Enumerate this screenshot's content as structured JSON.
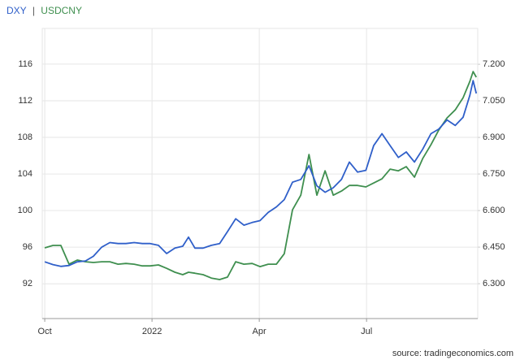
{
  "chart_data": {
    "type": "line",
    "title_separator": "|",
    "source": "source: tradingeconomics.com",
    "x": [
      0,
      0.23,
      0.45,
      0.68,
      0.91,
      1.14,
      1.36,
      1.59,
      1.82,
      2.05,
      2.27,
      2.5,
      2.73,
      2.95,
      3.18,
      3.41,
      3.64,
      3.86,
      4.02,
      4.2,
      4.43,
      4.66,
      4.89,
      5.11,
      5.34,
      5.57,
      5.8,
      6.02,
      6.25,
      6.48,
      6.7,
      6.93,
      7.16,
      7.39,
      7.61,
      7.84,
      8.07,
      8.3,
      8.52,
      8.75,
      8.98,
      9.2,
      9.43,
      9.66,
      9.89,
      10.11,
      10.34,
      10.57,
      10.8,
      11.02,
      11.25,
      11.48,
      11.7,
      11.89,
      11.98,
      12.07
    ],
    "xlim": [
      -0.07,
      12.11
    ],
    "xticks": [
      {
        "value": 0,
        "label": "Oct"
      },
      {
        "value": 3,
        "label": "2022"
      },
      {
        "value": 6,
        "label": "Apr"
      },
      {
        "value": 9,
        "label": "Jul"
      }
    ],
    "ylim": [
      88.2,
      119.9
    ],
    "yticks": [
      92,
      96,
      100,
      104,
      108,
      112,
      116
    ],
    "y2lim": [
      6.157,
      7.347
    ],
    "y2ticks": [
      {
        "value": 6.3,
        "label": "6.300"
      },
      {
        "value": 6.45,
        "label": "6.450"
      },
      {
        "value": 6.6,
        "label": "6.600"
      },
      {
        "value": 6.75,
        "label": "6.750"
      },
      {
        "value": 6.9,
        "label": "6.900"
      },
      {
        "value": 7.05,
        "label": "7.050"
      },
      {
        "value": 7.2,
        "label": "7.200"
      }
    ],
    "grid": true,
    "series": [
      {
        "name": "DXY",
        "color": "#2f5fc9",
        "values": [
          94.4,
          94.1,
          93.9,
          94.0,
          94.4,
          94.5,
          95.0,
          96.0,
          96.5,
          96.4,
          96.4,
          96.5,
          96.4,
          96.4,
          96.2,
          95.3,
          95.9,
          96.1,
          97.1,
          95.9,
          95.9,
          96.2,
          96.4,
          97.7,
          99.1,
          98.4,
          98.7,
          98.9,
          99.8,
          100.4,
          101.2,
          103.1,
          103.4,
          104.9,
          102.7,
          102.0,
          102.5,
          103.4,
          105.3,
          104.2,
          104.4,
          107.1,
          108.4,
          107.1,
          105.8,
          106.4,
          105.3,
          106.7,
          108.4,
          108.9,
          109.9,
          109.3,
          110.2,
          112.6,
          114.2,
          112.8
        ]
      },
      {
        "name": "USDCNY",
        "color": "#3f8f4f",
        "axis": "y2",
        "values": [
          6.447,
          6.457,
          6.457,
          6.38,
          6.397,
          6.39,
          6.387,
          6.39,
          6.39,
          6.38,
          6.383,
          6.38,
          6.373,
          6.373,
          6.377,
          6.363,
          6.347,
          6.337,
          6.347,
          6.343,
          6.337,
          6.323,
          6.317,
          6.327,
          6.39,
          6.38,
          6.383,
          6.37,
          6.38,
          6.38,
          6.423,
          6.603,
          6.663,
          6.83,
          6.663,
          6.763,
          6.663,
          6.68,
          6.703,
          6.703,
          6.697,
          6.713,
          6.73,
          6.77,
          6.763,
          6.78,
          6.737,
          6.813,
          6.87,
          6.93,
          6.98,
          7.013,
          7.063,
          7.13,
          7.17,
          7.147
        ]
      }
    ]
  }
}
